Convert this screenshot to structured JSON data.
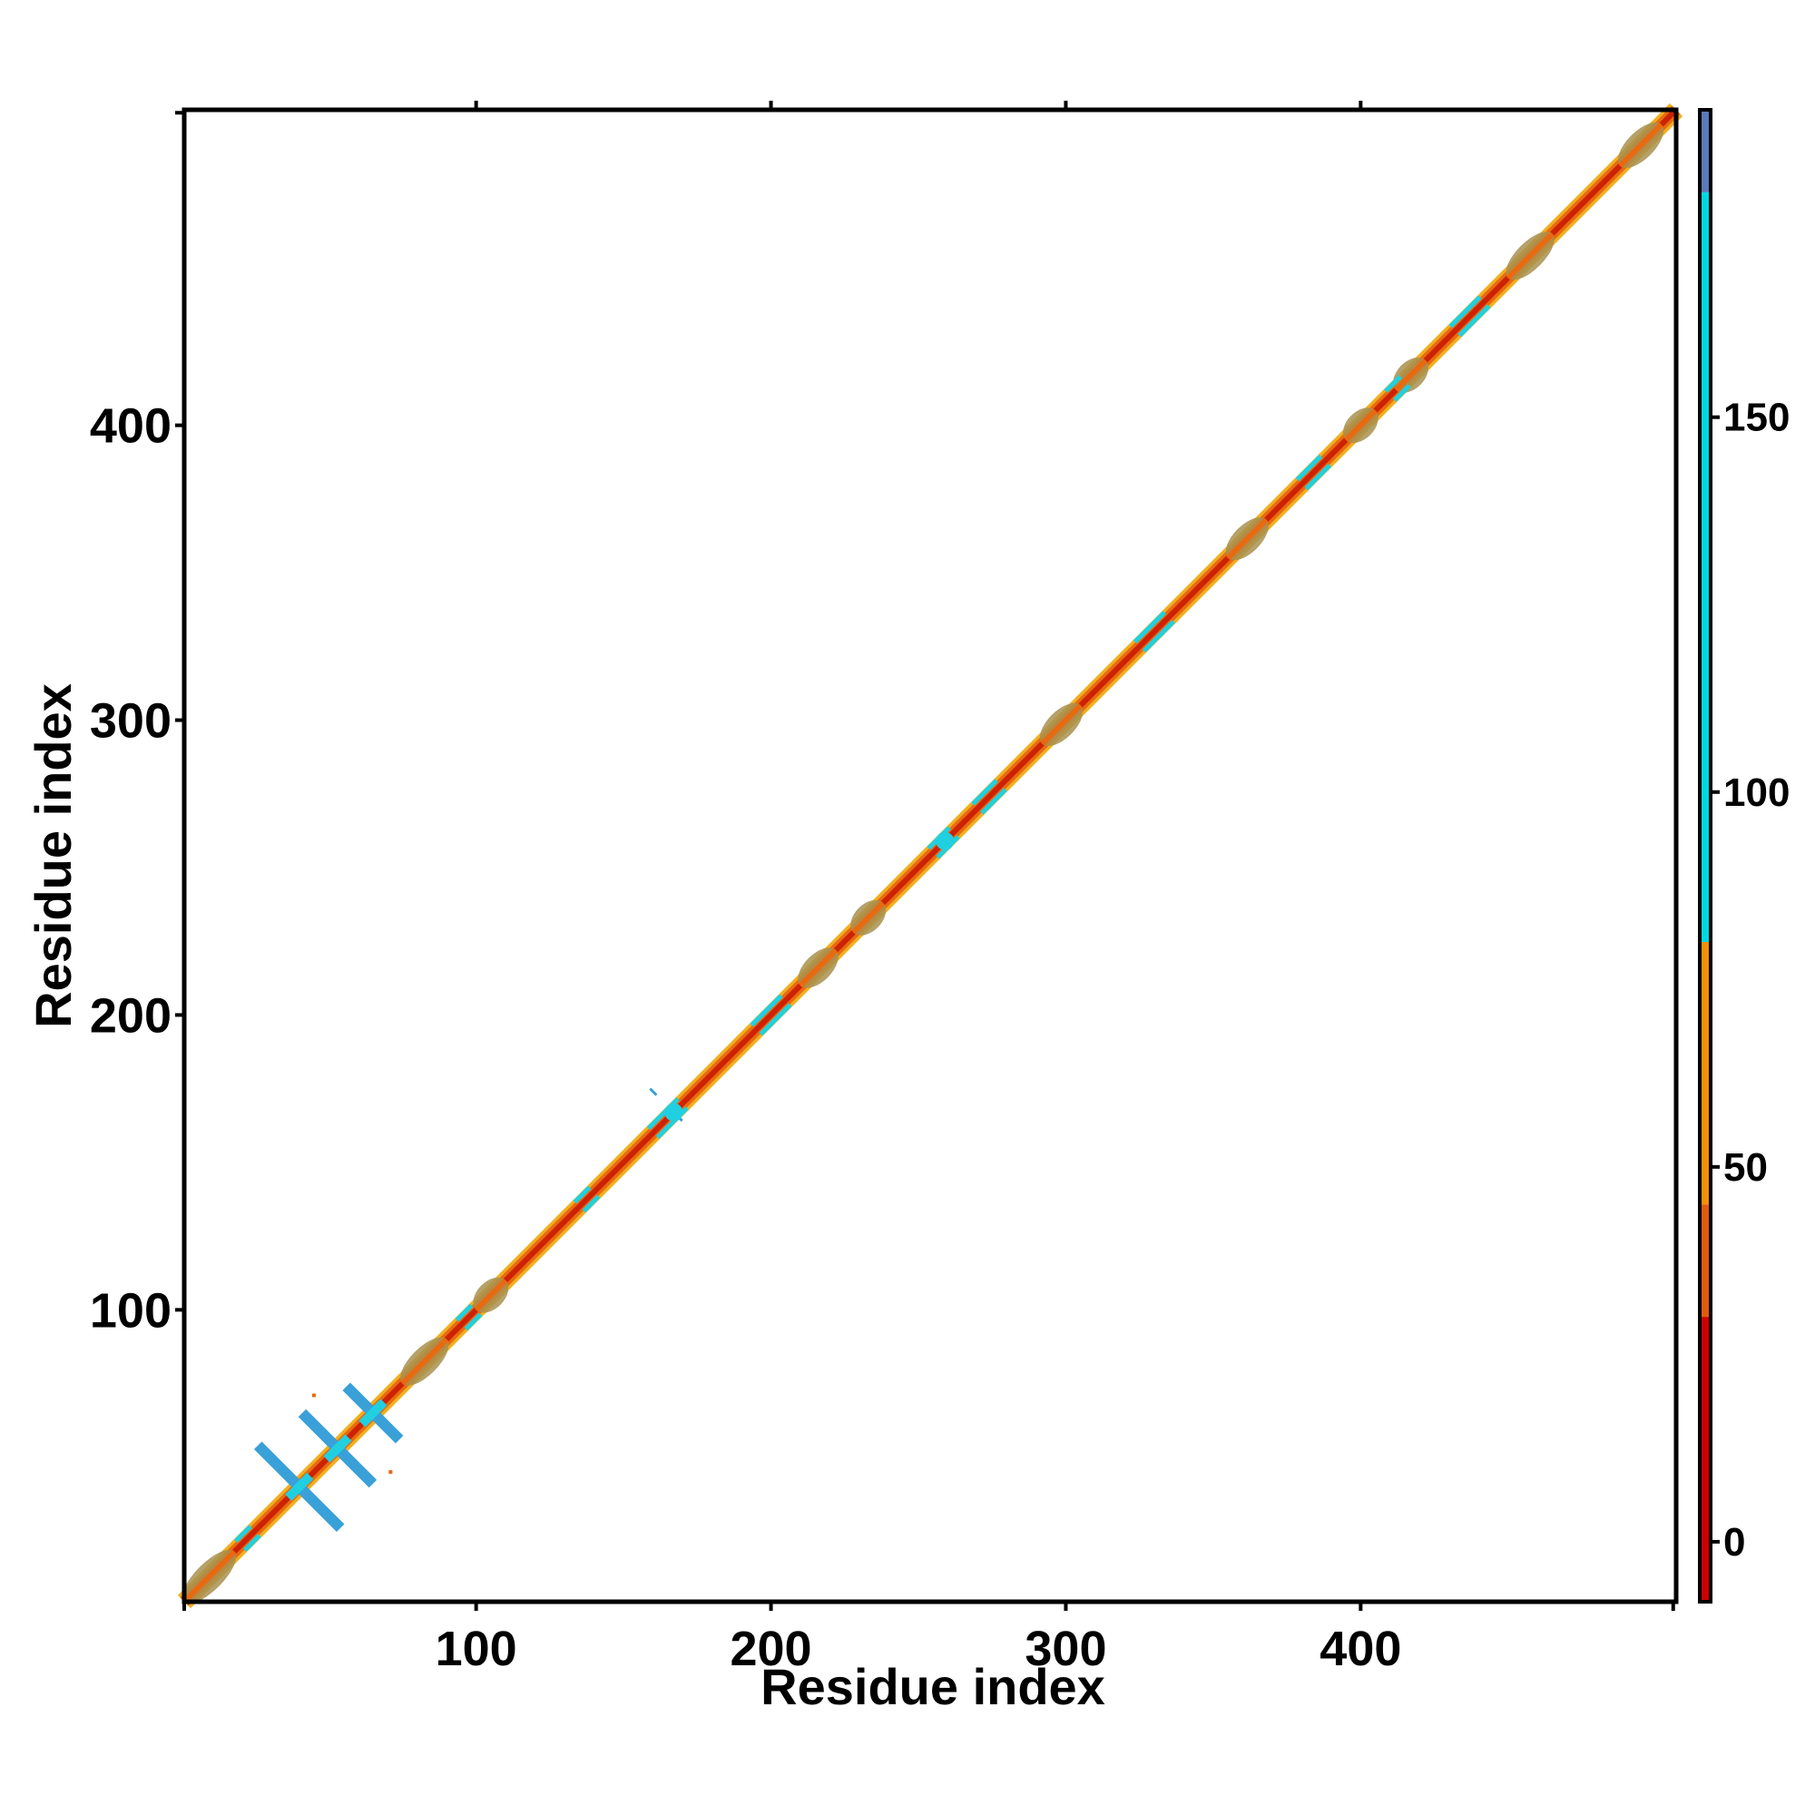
{
  "chart_data": {
    "type": "heatmap",
    "xlabel": "Residue index",
    "ylabel": "Residue index",
    "xlim": [
      1,
      507
    ],
    "ylim": [
      1,
      507
    ],
    "x_ticks": [
      100,
      200,
      300,
      400
    ],
    "y_ticks": [
      100,
      200,
      300,
      400
    ],
    "grid": false,
    "colorbar": {
      "range": [
        -8,
        191
      ],
      "ticks": [
        0,
        50,
        100,
        150
      ],
      "bands": [
        {
          "from": -8,
          "to": 30,
          "color": "#cc0000"
        },
        {
          "from": 30,
          "to": 45,
          "color": "#e05a10"
        },
        {
          "from": 45,
          "to": 80,
          "color": "#f0900a"
        },
        {
          "from": 80,
          "to": 180,
          "color": "#00d8e0"
        },
        {
          "from": 180,
          "to": 191,
          "color": "#5a7ab8"
        }
      ]
    },
    "colors": {
      "diagonal_core": "#cc2200",
      "diagonal_orange": "#e86a10",
      "diagonal_yellow": "#f0b020",
      "helix_blob": "#a89050",
      "cyan": "#20d0e0",
      "blue": "#3aa0d8"
    },
    "helix_segments": [
      [
        1,
        18
      ],
      [
        75,
        90
      ],
      [
        100,
        110
      ],
      [
        210,
        222
      ],
      [
        228,
        238
      ],
      [
        292,
        305
      ],
      [
        355,
        368
      ],
      [
        395,
        405
      ],
      [
        412,
        422
      ],
      [
        450,
        465
      ],
      [
        488,
        502
      ]
    ],
    "cyan_segments": [
      [
        20,
        25
      ],
      [
        95,
        100
      ],
      [
        135,
        140
      ],
      [
        160,
        170
      ],
      [
        195,
        205
      ],
      [
        255,
        262
      ],
      [
        270,
        278
      ],
      [
        325,
        335
      ],
      [
        380,
        388
      ],
      [
        410,
        415
      ],
      [
        432,
        442
      ]
    ],
    "off_diagonal_crosses": [
      {
        "center": 40,
        "half_span": 14
      },
      {
        "center": 53,
        "half_span": 12
      },
      {
        "center": 65,
        "half_span": 9
      }
    ],
    "off_diagonal_dots": [
      {
        "x": 45,
        "y": 71
      },
      {
        "x": 71,
        "y": 45
      }
    ]
  }
}
